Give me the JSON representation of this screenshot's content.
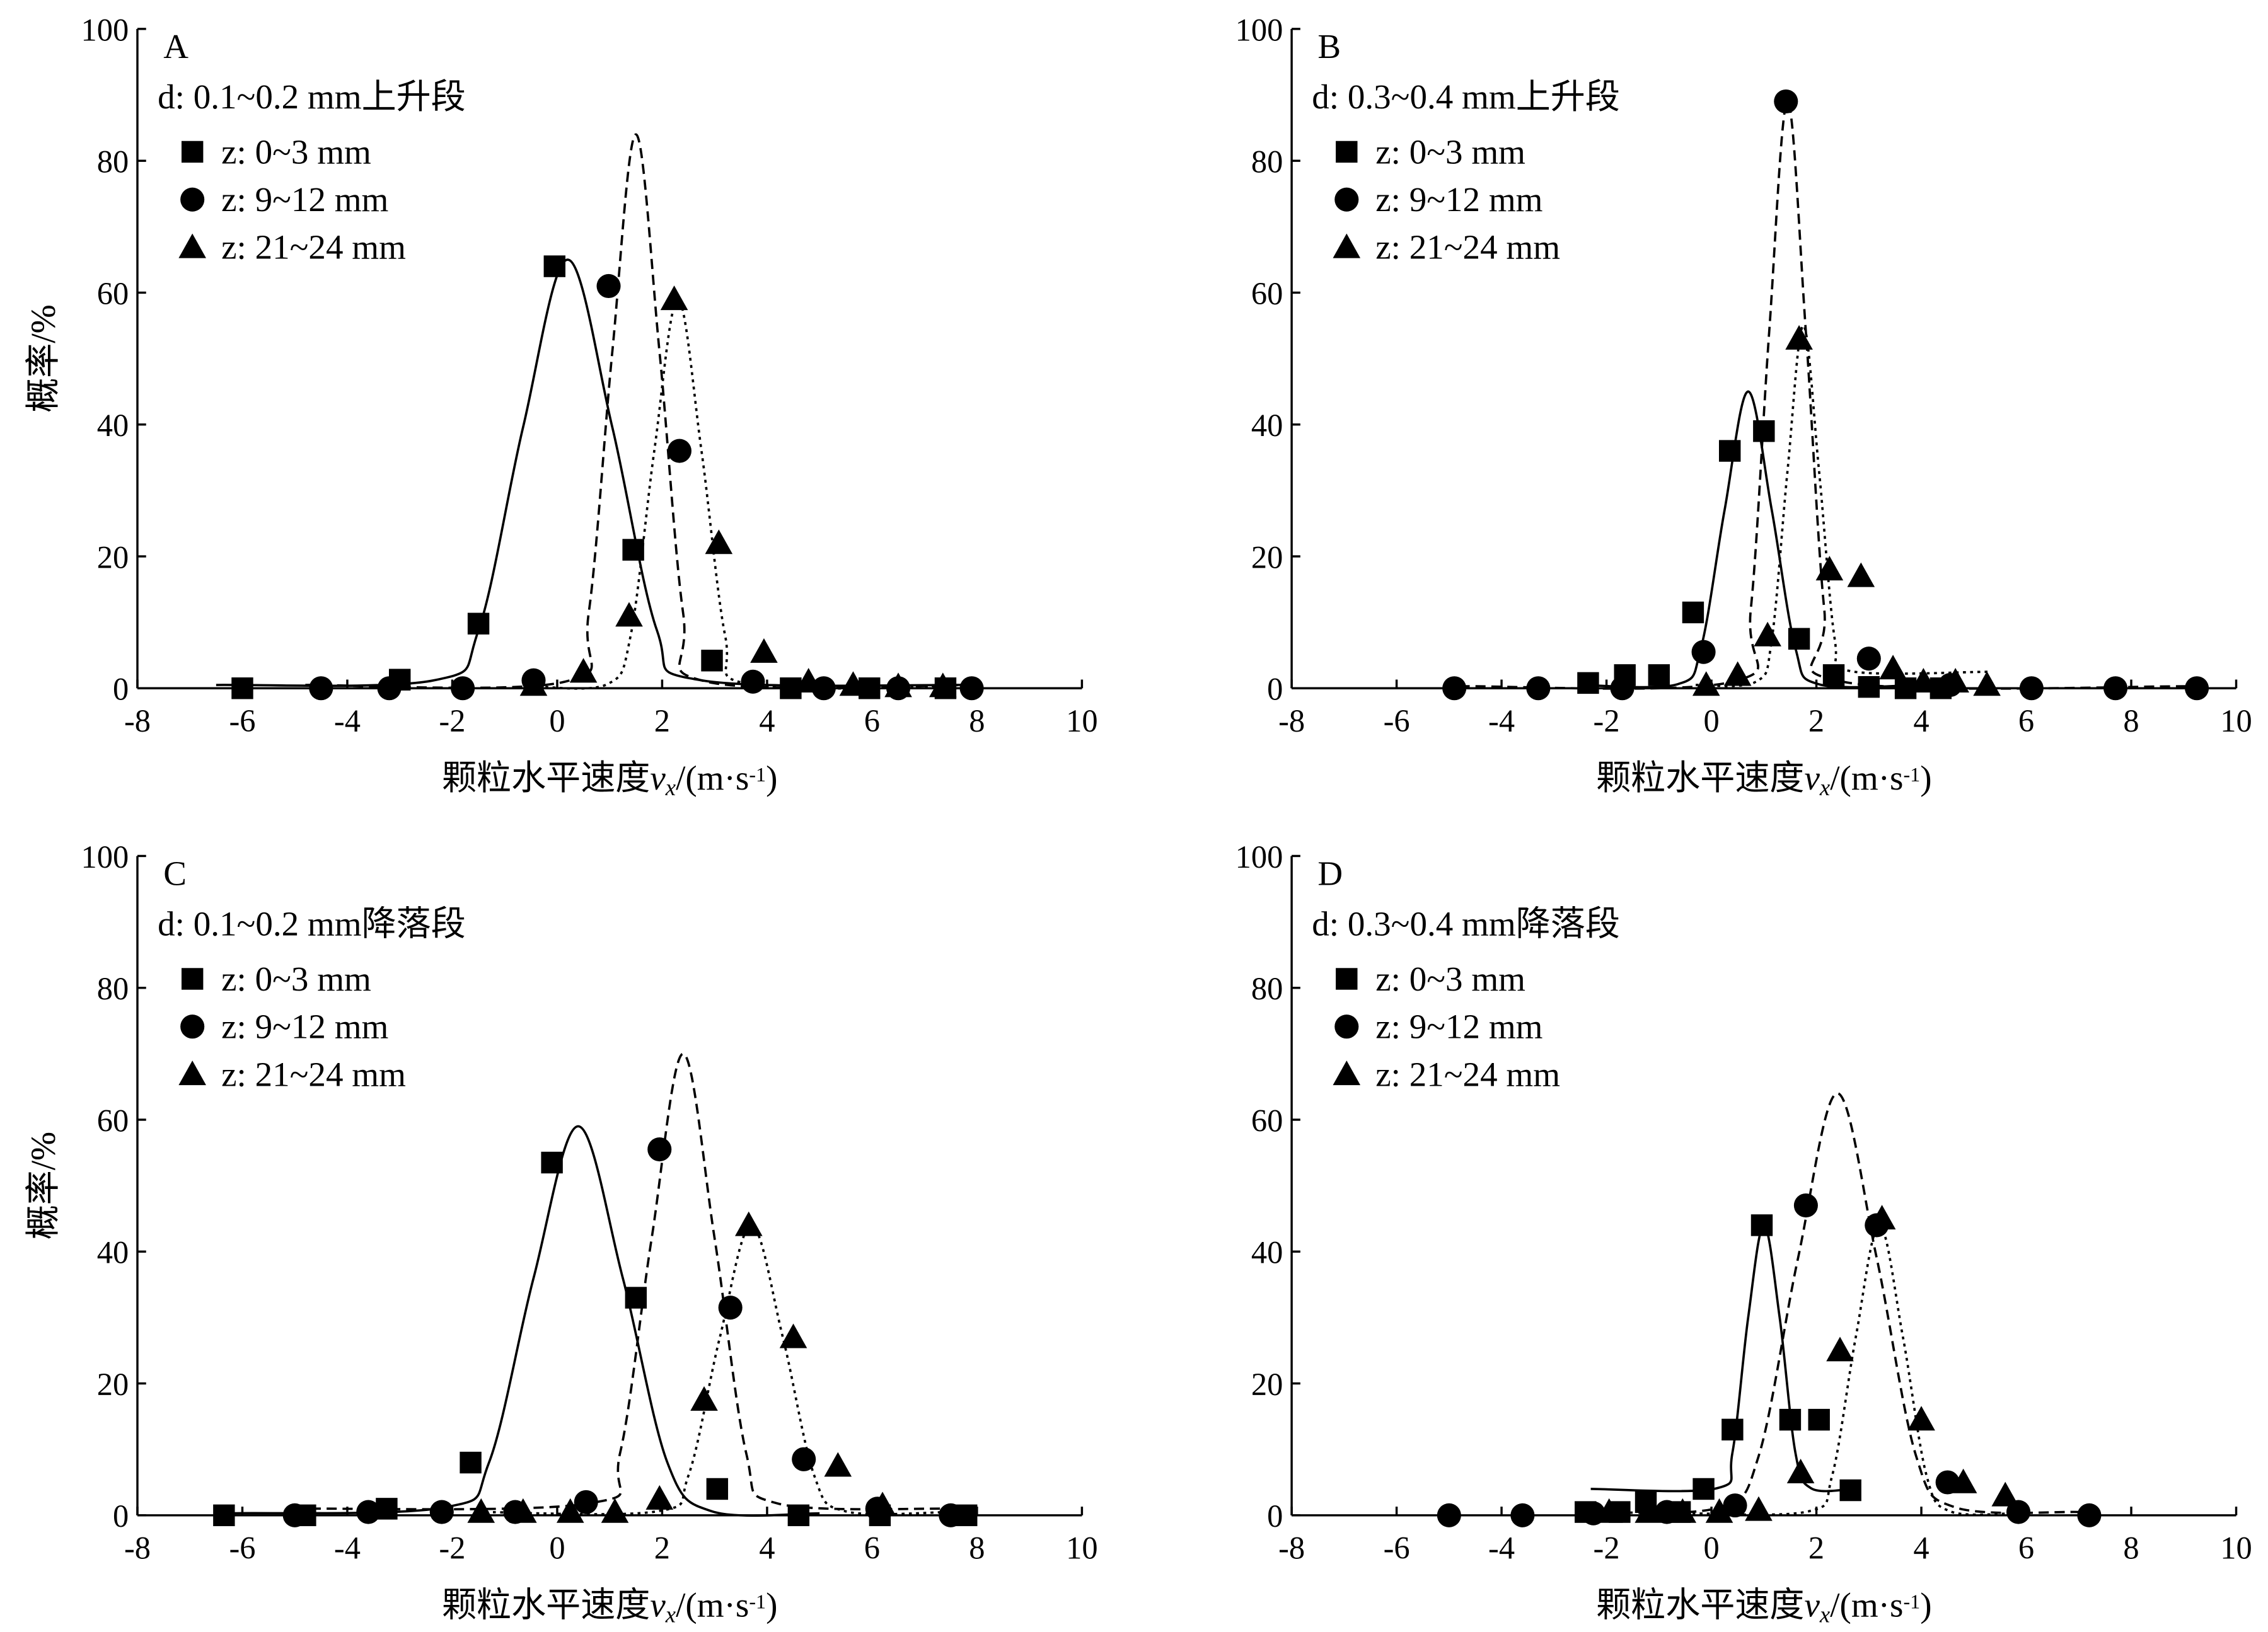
{
  "chart_data": [
    {
      "type": "scatter",
      "panel": "A",
      "subtitle": "d: 0.1~0.2 mm上升段",
      "xlabel": [
        "颗粒水平速度",
        "v",
        "x",
        "/(m·s",
        "-1",
        ")"
      ],
      "ylabel": "概率/%",
      "xlim": [
        -8,
        10
      ],
      "ylim": [
        0,
        100
      ],
      "xticks": [
        -8,
        -6,
        -4,
        -2,
        0,
        2,
        4,
        6,
        8,
        10
      ],
      "yticks": [
        0,
        20,
        40,
        60,
        80,
        100
      ],
      "series": [
        {
          "name": "z: 0~3 mm",
          "marker": "square",
          "line": "solid",
          "color": "#000000",
          "x": [
            -6,
            -3.0,
            -1.5,
            -0.05,
            1.45,
            2.95,
            4.45,
            5.95,
            7.4
          ],
          "values": [
            0,
            1.3,
            9.8,
            64,
            21,
            4.2,
            0,
            0,
            0
          ],
          "fit_x": [
            -6.5,
            -2.35,
            -1.5,
            -0.65,
            0.2,
            1.05,
            1.9,
            2.75,
            8
          ],
          "fit_y": [
            0.5,
            1.2,
            8.8,
            39.6,
            65,
            39.6,
            8.8,
            1.2,
            0.5
          ]
        },
        {
          "name": "z: 9~12 mm",
          "marker": "circle",
          "line": "dashed",
          "color": "#000000",
          "x": [
            -4.5,
            -3.2,
            -1.8,
            -0.45,
            0.98,
            2.33,
            3.73,
            5.08,
            6.5,
            7.9
          ],
          "values": [
            0,
            0,
            0,
            1.2,
            61,
            36,
            1,
            0,
            0,
            0
          ],
          "fit_x": [
            -4.8,
            0.15,
            0.6,
            1.05,
            1.5,
            1.95,
            2.4,
            2.85,
            8
          ],
          "fit_y": [
            0.5,
            1,
            11.4,
            51,
            84,
            51,
            11.4,
            1,
            0.5
          ]
        },
        {
          "name": "z: 21~24 mm",
          "marker": "triangle",
          "line": "dotted",
          "color": "#000000",
          "x": [
            -0.45,
            0.5,
            1.37,
            2.23,
            3.08,
            3.94,
            4.79,
            5.64,
            6.5,
            7.35
          ],
          "values": [
            0.5,
            2.5,
            11,
            59,
            22,
            5.5,
            1,
            0.5,
            0.3,
            0.3
          ],
          "fit_x": [
            -0.5,
            0.95,
            1.4,
            1.85,
            2.3,
            2.75,
            3.2,
            3.65,
            7.5
          ],
          "fit_y": [
            0.3,
            0.6,
            8,
            36,
            59,
            36,
            8,
            0.6,
            0.3
          ]
        }
      ]
    },
    {
      "type": "scatter",
      "panel": "B",
      "subtitle": "d: 0.3~0.4 mm上升段",
      "xlabel": [
        "颗粒水平速度",
        "v",
        "x",
        "/(m·s",
        "-1",
        ")"
      ],
      "ylabel": "概率/%",
      "xlim": [
        -8,
        10
      ],
      "ylim": [
        0,
        100
      ],
      "xticks": [
        -8,
        -6,
        -4,
        -2,
        0,
        2,
        4,
        6,
        8,
        10
      ],
      "yticks": [
        0,
        20,
        40,
        60,
        80,
        100
      ],
      "series": [
        {
          "name": "z: 0~3 mm",
          "marker": "square",
          "line": "solid",
          "color": "#000000",
          "x": [
            -2.35,
            -1.65,
            -1,
            -0.35,
            0.35,
            1,
            1.67,
            2.33,
            3,
            3.7,
            4.37
          ],
          "values": [
            0.8,
            2,
            2,
            11.5,
            36,
            39,
            7.5,
            2,
            0.2,
            0,
            0
          ],
          "fit_x": [
            -2.5,
            -0.65,
            -0.2,
            0.25,
            0.7,
            1.15,
            1.6,
            2.05,
            4
          ],
          "fit_y": [
            0.5,
            0.6,
            6.1,
            27,
            45,
            27,
            6.1,
            0.6,
            0.5
          ]
        },
        {
          "name": "z: 9~12 mm",
          "marker": "circle",
          "line": "dashed",
          "color": "#000000",
          "x": [
            -4.9,
            -3.3,
            -1.7,
            -0.15,
            1.42,
            3,
            4.55,
            6.1,
            7.7,
            9.25
          ],
          "values": [
            0,
            0,
            0,
            5.5,
            89,
            4.5,
            0.5,
            0,
            0,
            0
          ],
          "fit_x": [
            -4.8,
            0.4,
            0.75,
            1.1,
            1.45,
            1.8,
            2.15,
            2.5,
            9.3
          ],
          "fit_y": [
            0.3,
            1,
            12,
            54,
            89,
            54,
            12,
            1,
            0.3
          ]
        },
        {
          "name": "z: 21~24 mm",
          "marker": "triangle",
          "line": "dotted",
          "color": "#000000",
          "x": [
            -0.1,
            0.5,
            1.07,
            1.67,
            2.25,
            2.85,
            3.46,
            4.04,
            4.65,
            5.25
          ],
          "values": [
            0.5,
            2,
            8,
            53,
            18,
            17,
            3,
            1,
            1,
            0.5
          ],
          "fit_x": [
            -0.3,
            0.85,
            1.15,
            1.45,
            1.75,
            2.05,
            2.35,
            2.65,
            5.3
          ],
          "fit_y": [
            0.5,
            1,
            7.4,
            33,
            55,
            33,
            7.4,
            2.6,
            2.5
          ]
        }
      ]
    },
    {
      "type": "scatter",
      "panel": "C",
      "subtitle": "d: 0.1~0.2 mm降落段",
      "xlabel": [
        "颗粒水平速度",
        "v",
        "x",
        "/(m·s",
        "-1",
        ")"
      ],
      "ylabel": "概率/%",
      "xlim": [
        -8,
        10
      ],
      "ylim": [
        0,
        100
      ],
      "xticks": [
        -8,
        -6,
        -4,
        -2,
        0,
        2,
        4,
        6,
        8,
        10
      ],
      "yticks": [
        0,
        20,
        40,
        60,
        80,
        100
      ],
      "series": [
        {
          "name": "z: 0~3 mm",
          "marker": "square",
          "line": "solid",
          "color": "#000000",
          "x": [
            -6.35,
            -4.8,
            -3.25,
            -1.65,
            -0.1,
            1.5,
            3.05,
            4.6,
            6.15,
            7.8
          ],
          "values": [
            0,
            0,
            1,
            8,
            53.5,
            33,
            4,
            0,
            0,
            0
          ],
          "fit_x": [
            -6.3,
            -2.15,
            -1.3,
            -0.45,
            0.4,
            1.25,
            2.1,
            2.95,
            5
          ],
          "fit_y": [
            0.3,
            1.2,
            8,
            36,
            59,
            36,
            8,
            0.6,
            0.3
          ]
        },
        {
          "name": "z: 9~12 mm",
          "marker": "circle",
          "line": "dashed",
          "color": "#000000",
          "x": [
            -5,
            -3.6,
            -2.2,
            -0.8,
            0.55,
            1.95,
            3.3,
            4.7,
            6.1,
            7.5
          ],
          "values": [
            0,
            0.5,
            0.5,
            0.5,
            2,
            55.5,
            31.5,
            8.5,
            1,
            0
          ],
          "fit_x": [
            -5,
            0.6,
            1.2,
            1.8,
            2.4,
            3,
            3.6,
            4.2,
            7.5
          ],
          "fit_y": [
            1,
            1.8,
            9.5,
            42,
            70,
            42,
            9.5,
            1.8,
            1
          ]
        },
        {
          "name": "z: 21~24 mm",
          "marker": "triangle",
          "line": "dotted",
          "color": "#000000",
          "x": [
            -1.45,
            -0.65,
            0.25,
            1.1,
            1.95,
            2.8,
            3.65,
            4.5,
            5.35,
            6.2
          ],
          "values": [
            0.5,
            0.5,
            0.5,
            0.5,
            2.5,
            17.5,
            44,
            27,
            7.5,
            1.5
          ],
          "fit_x": [
            -1.5,
            1.9,
            2.5,
            3.1,
            3.7,
            4.3,
            4.9,
            5.5,
            7.5
          ],
          "fit_y": [
            0.5,
            0.6,
            6,
            27,
            44,
            27,
            6,
            0.6,
            0.5
          ]
        }
      ]
    },
    {
      "type": "scatter",
      "panel": "D",
      "subtitle": "d: 0.3~0.4 mm降落段",
      "xlabel": [
        "颗粒水平速度",
        "v",
        "x",
        "/(m·s",
        "-1",
        ")"
      ],
      "ylabel": "概率/%",
      "xlim": [
        -8,
        10
      ],
      "ylim": [
        0,
        100
      ],
      "xticks": [
        -8,
        -6,
        -4,
        -2,
        0,
        2,
        4,
        6,
        8,
        10
      ],
      "yticks": [
        0,
        20,
        40,
        60,
        80,
        100
      ],
      "series": [
        {
          "name": "z: 0~3 mm",
          "marker": "square",
          "line": "solid",
          "color": "#000000",
          "x": [
            -2.4,
            -1.75,
            -1.25,
            -0.6,
            -0.15,
            0.4,
            0.96,
            1.5,
            2.05,
            2.65
          ],
          "values": [
            0.5,
            0.5,
            2,
            0.5,
            4,
            13,
            44,
            14.5,
            14.5,
            3.8
          ],
          "fit_x": [
            -2.3,
            0.1,
            0.4,
            0.7,
            1,
            1.3,
            1.6,
            1.9,
            2.7
          ],
          "fit_y": [
            4,
            4.1,
            9.5,
            30,
            44,
            30,
            9.5,
            4.1,
            4
          ]
        },
        {
          "name": "z: 9~12 mm",
          "marker": "circle",
          "line": "dashed",
          "color": "#000000",
          "x": [
            -5,
            -3.6,
            -2.25,
            -0.85,
            0.45,
            1.8,
            3.15,
            4.5,
            5.85,
            7.2
          ],
          "values": [
            0,
            0,
            0.3,
            0.5,
            1.5,
            47,
            44,
            5,
            0.5,
            0
          ],
          "fit_x": [
            -2.3,
            0.15,
            0.9,
            1.65,
            2.4,
            3.15,
            3.9,
            4.65,
            7
          ],
          "fit_y": [
            0.5,
            1.2,
            9,
            39,
            64,
            39,
            9,
            1.2,
            0.5
          ]
        },
        {
          "name": "z: 21~24 mm",
          "marker": "triangle",
          "line": "dotted",
          "color": "#000000",
          "x": [
            -1.95,
            -1.2,
            -0.55,
            0.15,
            0.9,
            1.7,
            2.45,
            3.25,
            4,
            4.8,
            5.6
          ],
          "values": [
            0.5,
            0.5,
            0.5,
            0.5,
            0.8,
            6.5,
            25,
            45,
            14.5,
            5,
            3
          ],
          "fit_x": [
            -0.5,
            1.85,
            2.3,
            2.75,
            3.2,
            3.65,
            4.1,
            4.55,
            5.8
          ],
          "fit_y": [
            0.3,
            0.6,
            6,
            27,
            44,
            27,
            6,
            0.6,
            0.3
          ]
        }
      ]
    }
  ]
}
